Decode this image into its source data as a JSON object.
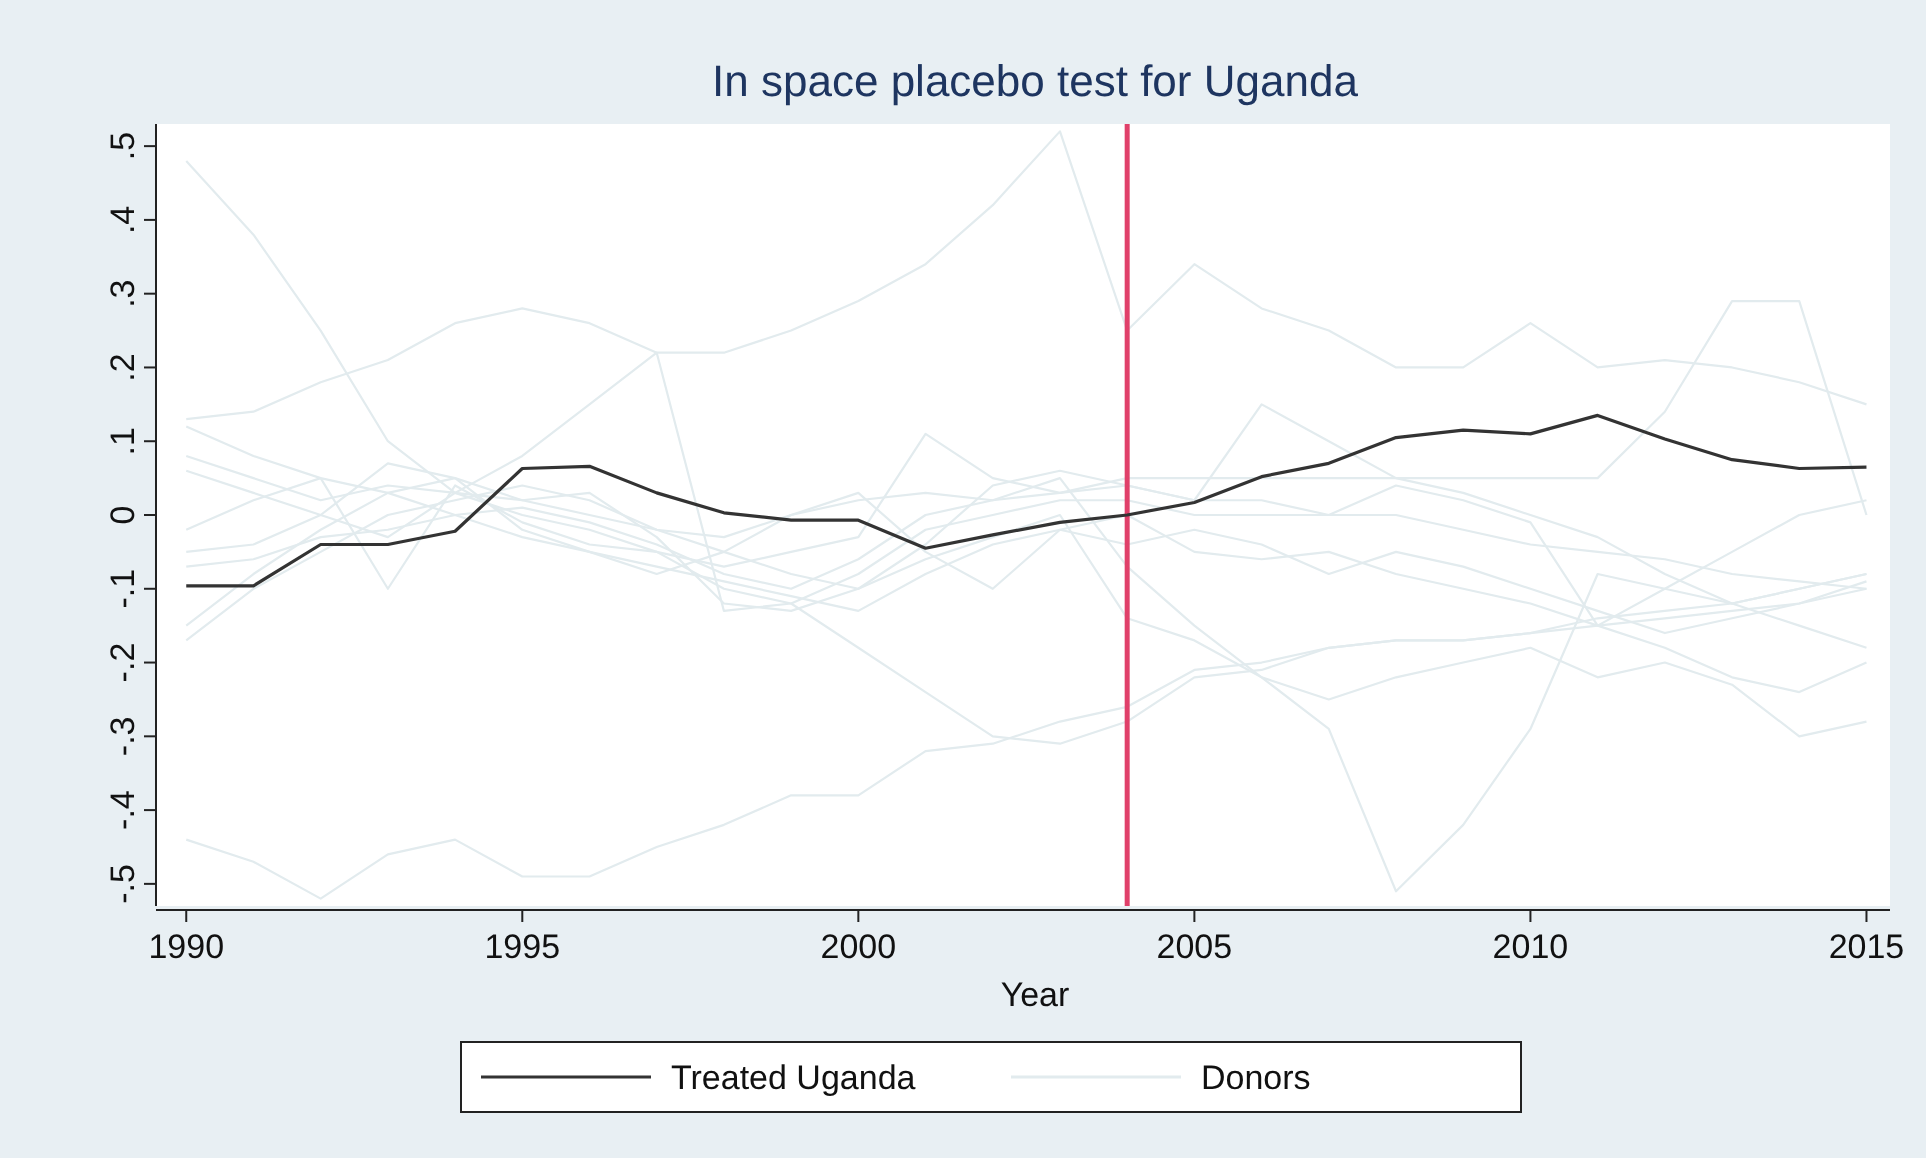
{
  "chart_data": {
    "type": "line",
    "title": "In space placebo test for Uganda",
    "xlabel": "Year",
    "x": [
      1990,
      1991,
      1992,
      1993,
      1994,
      1995,
      1996,
      1997,
      1998,
      1999,
      2000,
      2001,
      2002,
      2003,
      2004,
      2005,
      2006,
      2007,
      2008,
      2009,
      2010,
      2011,
      2012,
      2013,
      2014,
      2015
    ],
    "xlim": [
      1989.55,
      2015.35
    ],
    "xticks": [
      1990,
      1995,
      2000,
      2005,
      2010,
      2015
    ],
    "ylim": [
      -0.53,
      0.53
    ],
    "yticks": [
      {
        "value": -0.5,
        "label": "-.5"
      },
      {
        "value": -0.4,
        "label": "-.4"
      },
      {
        "value": -0.3,
        "label": "-.3"
      },
      {
        "value": -0.2,
        "label": "-.2"
      },
      {
        "value": -0.1,
        "label": "-.1"
      },
      0,
      {
        "value": 0.1,
        "label": ".1"
      },
      {
        "value": 0.2,
        "label": ".2"
      },
      {
        "value": 0.3,
        "label": ".3"
      },
      {
        "value": 0.4,
        "label": ".4"
      },
      {
        "value": 0.5,
        "label": ".5"
      }
    ],
    "grid": false,
    "legend": "bottom",
    "marker": "none",
    "line_style": "solid",
    "ref_lines": [
      {
        "axis": "x",
        "value": 2004,
        "color": "#e0406a"
      }
    ],
    "series": [
      {
        "name": "Treated Uganda",
        "color": "#333333",
        "values": [
          -0.096,
          -0.096,
          -0.04,
          -0.04,
          -0.022,
          0.063,
          0.066,
          0.03,
          0.003,
          -0.007,
          -0.007,
          -0.045,
          -0.027,
          -0.01,
          0.0,
          0.017,
          0.052,
          0.07,
          0.105,
          0.115,
          0.11,
          0.135,
          0.103,
          0.075,
          0.063,
          0.065
        ]
      },
      {
        "name": "Donors",
        "color": "#e2ebee",
        "values": [
          0.48,
          0.38,
          0.25,
          0.1,
          0.03,
          0.0,
          -0.02,
          -0.05,
          -0.1,
          -0.12,
          -0.18,
          -0.24,
          -0.3,
          -0.31,
          -0.28,
          -0.22,
          -0.21,
          -0.18,
          -0.17,
          -0.17,
          -0.16,
          -0.14,
          -0.13,
          -0.12,
          -0.1,
          -0.08
        ]
      },
      {
        "color": "#e2ebee",
        "values": [
          0.13,
          0.14,
          0.18,
          0.21,
          0.26,
          0.28,
          0.26,
          0.22,
          0.22,
          0.25,
          0.29,
          0.34,
          0.42,
          0.52,
          0.25,
          0.34,
          0.28,
          0.25,
          0.2,
          0.2,
          0.26,
          0.2,
          0.21,
          0.2,
          0.18,
          0.15
        ]
      },
      {
        "color": "#e2ebee",
        "values": [
          -0.44,
          -0.47,
          -0.52,
          -0.46,
          -0.44,
          -0.49,
          -0.49,
          -0.45,
          -0.42,
          -0.38,
          -0.38,
          -0.32,
          -0.31,
          -0.28,
          -0.26,
          -0.21,
          -0.2,
          -0.18,
          -0.17,
          -0.17,
          -0.16,
          -0.15,
          -0.14,
          -0.13,
          -0.12,
          -0.1
        ]
      },
      {
        "color": "#e2ebee",
        "values": [
          -0.17,
          -0.1,
          -0.05,
          0.0,
          0.02,
          0.04,
          0.02,
          -0.02,
          -0.05,
          -0.08,
          -0.1,
          -0.06,
          -0.03,
          0.0,
          -0.14,
          -0.17,
          -0.22,
          -0.29,
          -0.51,
          -0.42,
          -0.29,
          -0.08,
          -0.1,
          -0.12,
          -0.1,
          -0.08
        ]
      },
      {
        "color": "#e2ebee",
        "values": [
          0.08,
          0.05,
          0.02,
          0.04,
          0.03,
          0.02,
          0.0,
          -0.02,
          -0.03,
          0.0,
          0.02,
          0.03,
          0.02,
          0.03,
          0.05,
          0.05,
          0.05,
          0.05,
          0.05,
          0.05,
          0.05,
          0.05,
          0.14,
          0.29,
          0.29,
          0.0
        ]
      },
      {
        "color": "#e2ebee",
        "values": [
          0.06,
          0.03,
          0.0,
          -0.03,
          0.03,
          0.08,
          0.15,
          0.22,
          -0.13,
          -0.12,
          -0.08,
          -0.02,
          0.0,
          0.02,
          0.02,
          0.0,
          0.0,
          0.0,
          0.0,
          -0.02,
          -0.04,
          -0.05,
          -0.06,
          -0.08,
          -0.09,
          -0.1
        ]
      },
      {
        "color": "#e2ebee",
        "values": [
          -0.05,
          -0.04,
          0.0,
          0.07,
          0.05,
          0.02,
          0.03,
          -0.03,
          -0.12,
          -0.13,
          -0.1,
          -0.04,
          0.04,
          0.06,
          0.04,
          0.02,
          0.15,
          0.1,
          0.05,
          0.03,
          0.0,
          -0.03,
          -0.08,
          -0.12,
          -0.15,
          -0.18
        ]
      },
      {
        "color": "#e2ebee",
        "values": [
          -0.02,
          0.02,
          0.05,
          -0.1,
          0.04,
          -0.01,
          -0.04,
          -0.05,
          -0.07,
          -0.05,
          -0.03,
          0.11,
          0.05,
          0.03,
          0.04,
          0.02,
          0.02,
          0.0,
          0.04,
          0.02,
          -0.01,
          -0.15,
          -0.1,
          -0.05,
          0.0,
          0.02
        ]
      },
      {
        "color": "#e2ebee",
        "values": [
          -0.15,
          -0.08,
          -0.02,
          0.03,
          0.05,
          -0.02,
          -0.05,
          -0.08,
          -0.05,
          0.0,
          0.03,
          -0.05,
          -0.1,
          -0.02,
          0.0,
          -0.05,
          -0.06,
          -0.05,
          -0.08,
          -0.1,
          -0.12,
          -0.15,
          -0.18,
          -0.22,
          -0.24,
          -0.2
        ]
      },
      {
        "color": "#e2ebee",
        "values": [
          0.12,
          0.08,
          0.05,
          0.03,
          0.0,
          0.01,
          -0.01,
          -0.04,
          -0.08,
          -0.1,
          -0.06,
          0.0,
          0.02,
          0.05,
          -0.07,
          -0.15,
          -0.22,
          -0.25,
          -0.22,
          -0.2,
          -0.18,
          -0.22,
          -0.2,
          -0.23,
          -0.3,
          -0.28
        ]
      },
      {
        "color": "#e2ebee",
        "values": [
          -0.07,
          -0.06,
          -0.03,
          -0.02,
          0.0,
          -0.03,
          -0.05,
          -0.07,
          -0.09,
          -0.11,
          -0.13,
          -0.08,
          -0.04,
          -0.02,
          -0.04,
          -0.02,
          -0.04,
          -0.08,
          -0.05,
          -0.07,
          -0.1,
          -0.13,
          -0.16,
          -0.14,
          -0.12,
          -0.09
        ]
      }
    ]
  }
}
